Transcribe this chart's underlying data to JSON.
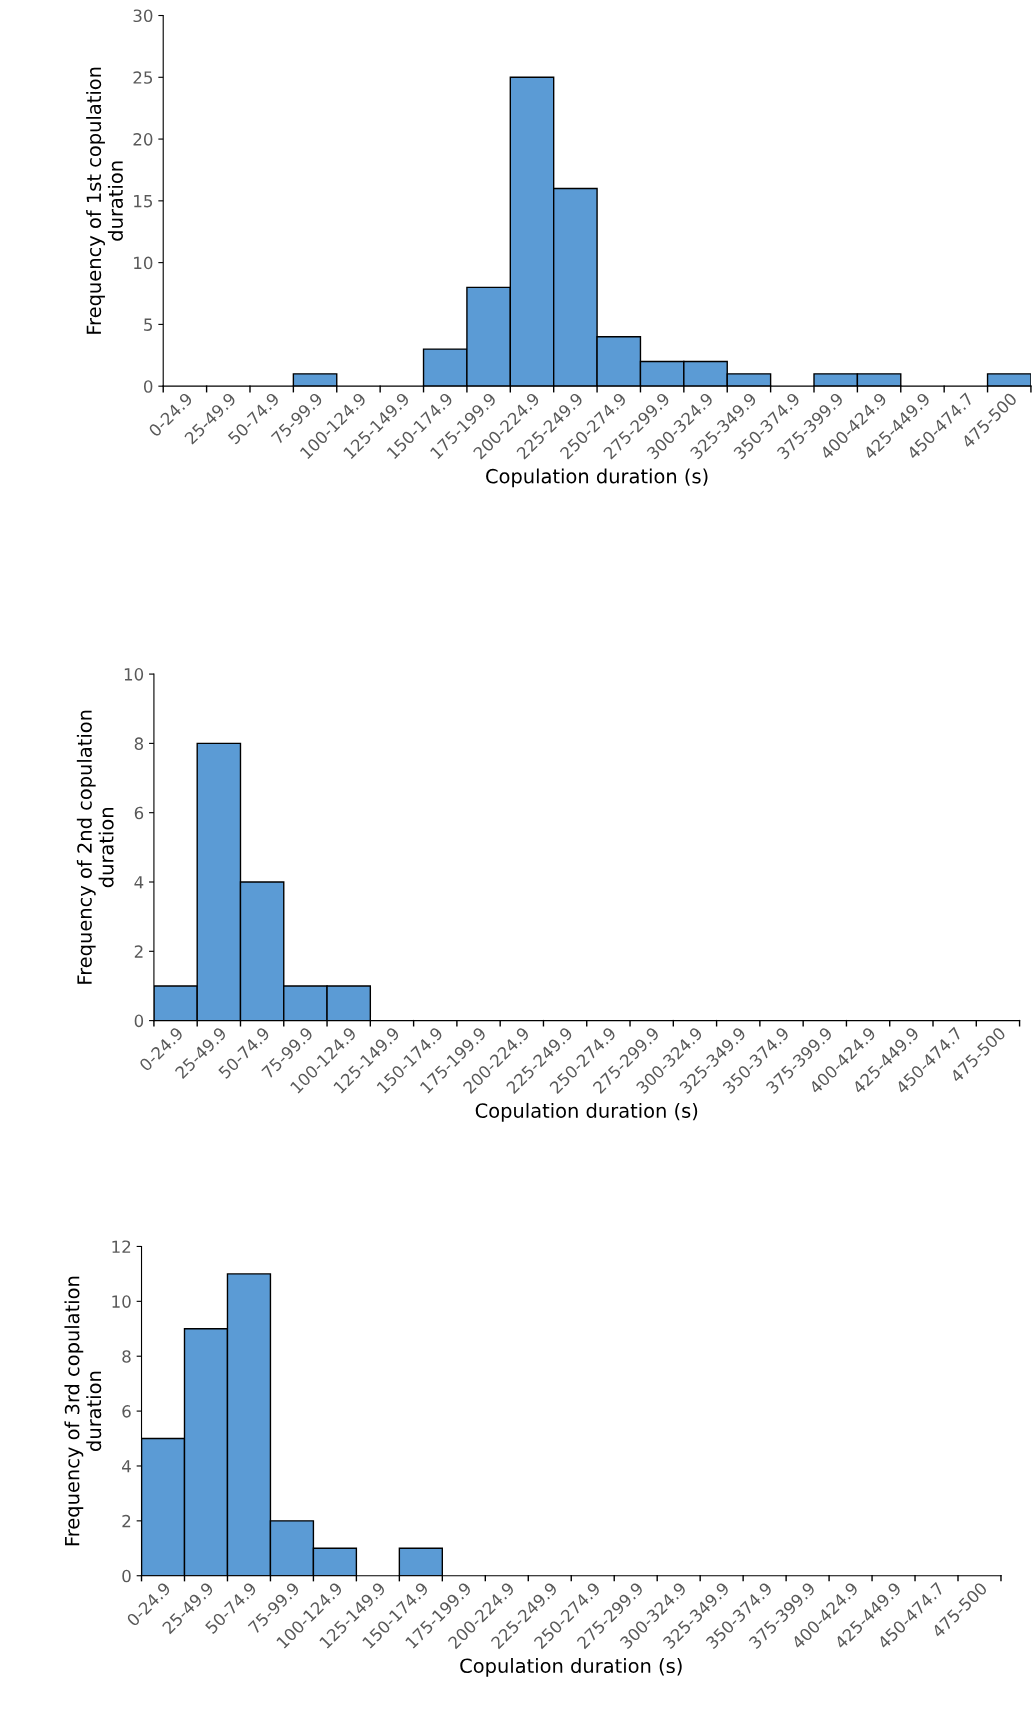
{
  "chart_data": [
    {
      "type": "bar",
      "xlabel": "Copulation duration (s)",
      "ylabel": "Frequency of 1st copulation\nduration",
      "categories": [
        "0-24.9",
        "25-49.9",
        "50-74.9",
        "75-99.9",
        "100-124.9",
        "125-149.9",
        "150-174.9",
        "175-199.9",
        "200-224.9",
        "225-249.9",
        "250-274.9",
        "275-299.9",
        "300-324.9",
        "325-349.9",
        "350-374.9",
        "375-399.9",
        "400-424.9",
        "425-449.9",
        "450-474.7",
        "475-500"
      ],
      "values": [
        0,
        0,
        0,
        1,
        0,
        0,
        3,
        8,
        25,
        16,
        4,
        2,
        2,
        1,
        0,
        1,
        1,
        0,
        0,
        1
      ],
      "color": "#5b9bd5",
      "ylim": [
        0,
        30
      ],
      "yticks": [
        0,
        5,
        10,
        15,
        20,
        25,
        30
      ],
      "grid": false,
      "legend": false
    },
    {
      "type": "bar",
      "xlabel": "Copulation duration (s)",
      "ylabel": "Frequency of 2nd copulation\nduration",
      "categories": [
        "0-24.9",
        "25-49.9",
        "50-74.9",
        "75-99.9",
        "100-124.9",
        "125-149.9",
        "150-174.9",
        "175-199.9",
        "200-224.9",
        "225-249.9",
        "250-274.9",
        "275-299.9",
        "300-324.9",
        "325-349.9",
        "350-374.9",
        "375-399.9",
        "400-424.9",
        "425-449.9",
        "450-474.7",
        "475-500"
      ],
      "values": [
        1,
        8,
        4,
        1,
        1,
        0,
        0,
        0,
        0,
        0,
        0,
        0,
        0,
        0,
        0,
        0,
        0,
        0,
        0,
        0
      ],
      "color": "#5b9bd5",
      "ylim": [
        0,
        10
      ],
      "yticks": [
        0,
        2,
        4,
        6,
        8,
        10
      ],
      "grid": false,
      "legend": false
    },
    {
      "type": "bar",
      "xlabel": "Copulation duration (s)",
      "ylabel": "Frequency of 3rd copulation\nduration",
      "categories": [
        "0-24.9",
        "25-49.9",
        "50-74.9",
        "75-99.9",
        "100-124.9",
        "125-149.9",
        "150-174.9",
        "175-199.9",
        "200-224.9",
        "225-249.9",
        "250-274.9",
        "275-299.9",
        "300-324.9",
        "325-349.9",
        "350-374.9",
        "375-399.9",
        "400-424.9",
        "425-449.9",
        "450-474.7",
        "475-500"
      ],
      "values": [
        5,
        9,
        11,
        2,
        1,
        0,
        1,
        0,
        0,
        0,
        0,
        0,
        0,
        0,
        0,
        0,
        0,
        0,
        0,
        0
      ],
      "color": "#5b9bd5",
      "ylim": [
        0,
        12
      ],
      "yticks": [
        0,
        2,
        4,
        6,
        8,
        10,
        12
      ],
      "grid": false,
      "legend": false
    }
  ]
}
